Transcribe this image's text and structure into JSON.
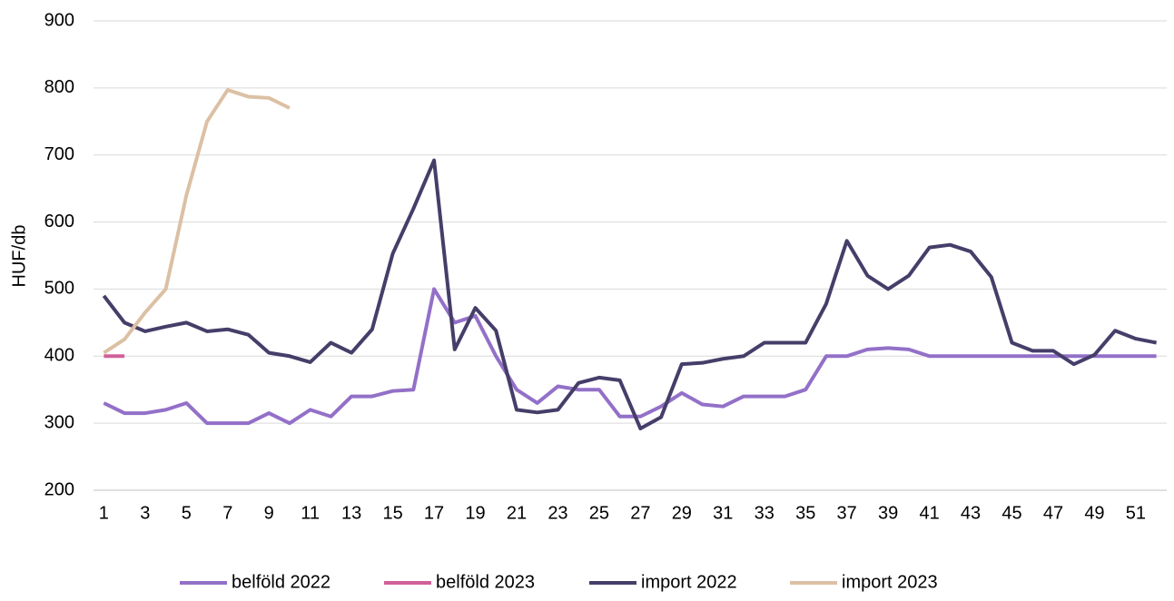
{
  "chart_data": {
    "type": "line",
    "y_label": "HUF/db",
    "categories": [
      1,
      null,
      3,
      null,
      5,
      null,
      7,
      null,
      9,
      null,
      11,
      null,
      13,
      null,
      15,
      null,
      17,
      null,
      19,
      null,
      21,
      null,
      23,
      null,
      25,
      null,
      27,
      null,
      29,
      null,
      31,
      null,
      33,
      null,
      35,
      null,
      37,
      null,
      39,
      null,
      41,
      null,
      43,
      null,
      45,
      null,
      47,
      null,
      49,
      null,
      51,
      null
    ],
    "series": [
      {
        "name": "belföld 2022",
        "color": "#9370c8",
        "values": [
          330,
          315,
          315,
          320,
          330,
          300,
          300,
          300,
          315,
          300,
          320,
          310,
          340,
          340,
          348,
          350,
          500,
          450,
          460,
          400,
          350,
          330,
          355,
          350,
          350,
          310,
          310,
          325,
          345,
          328,
          325,
          340,
          340,
          340,
          350,
          400,
          400,
          410,
          412,
          410,
          400,
          400,
          400,
          400,
          400,
          400,
          400,
          400,
          400,
          400,
          400,
          400
        ]
      },
      {
        "name": "belföld 2023",
        "color": "#d0609a",
        "values": [
          400,
          400,
          null,
          null,
          null,
          null,
          null,
          null,
          null,
          null,
          null,
          null,
          null,
          null,
          null,
          null,
          null,
          null,
          null,
          null,
          null,
          null,
          null,
          null,
          null,
          null,
          null,
          null,
          null,
          null,
          null,
          null,
          null,
          null,
          null,
          null,
          null,
          null,
          null,
          null,
          null,
          null,
          null,
          null,
          null,
          null,
          null,
          null,
          null,
          null,
          null,
          null
        ]
      },
      {
        "name": "import 2022",
        "color": "#463e69",
        "values": [
          490,
          450,
          437,
          444,
          450,
          437,
          440,
          432,
          405,
          400,
          391,
          420,
          405,
          440,
          553,
          620,
          692,
          410,
          472,
          438,
          320,
          316,
          320,
          360,
          368,
          364,
          292,
          309,
          388,
          390,
          396,
          400,
          420,
          420,
          420,
          478,
          572,
          520,
          500,
          520,
          562,
          566,
          556,
          518,
          420,
          408,
          408,
          388,
          402,
          438,
          426,
          420
        ]
      },
      {
        "name": "import 2023",
        "color": "#dcc0a4",
        "values": [
          405,
          425,
          465,
          500,
          640,
          750,
          797,
          787,
          785,
          770,
          null,
          null,
          null,
          null,
          null,
          null,
          null,
          null,
          null,
          null,
          null,
          null,
          null,
          null,
          null,
          null,
          null,
          null,
          null,
          null,
          null,
          null,
          null,
          null,
          null,
          null,
          null,
          null,
          null,
          null,
          null,
          null,
          null,
          null,
          null,
          null,
          null,
          null,
          null,
          null,
          null,
          null
        ]
      }
    ],
    "ylim": [
      200,
      900
    ],
    "yticks": [
      200,
      300,
      400,
      500,
      600,
      700,
      800,
      900
    ],
    "grid": true,
    "legend": "bottom"
  }
}
